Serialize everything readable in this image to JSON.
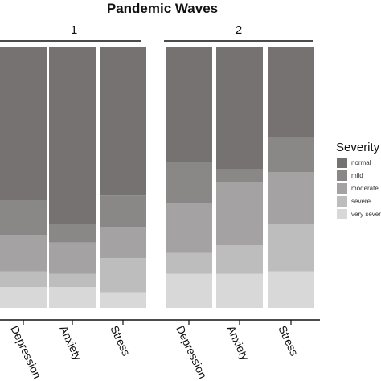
{
  "chart_data": {
    "type": "bar",
    "stacked": true,
    "normalized": true,
    "title": "Pandemic Waves",
    "groups": [
      {
        "label": "1",
        "categories": [
          "Depression",
          "Anxiety",
          "Stress"
        ]
      },
      {
        "label": "2",
        "categories": [
          "Depression",
          "Anxiety",
          "Stress"
        ]
      }
    ],
    "series": [
      {
        "name": "normal",
        "color": "#767272",
        "values": [
          0.59,
          0.68,
          0.57,
          0.44,
          0.47,
          0.35
        ]
      },
      {
        "name": "mild",
        "color": "#8a8787",
        "values": [
          0.13,
          0.07,
          0.12,
          0.16,
          0.05,
          0.13
        ]
      },
      {
        "name": "moderate",
        "color": "#a4a2a2",
        "values": [
          0.14,
          0.12,
          0.12,
          0.19,
          0.24,
          0.2
        ]
      },
      {
        "name": "severe",
        "color": "#bebdbd",
        "values": [
          0.06,
          0.05,
          0.13,
          0.08,
          0.11,
          0.18
        ]
      },
      {
        "name": "very severe",
        "color": "#d9d8d8",
        "values": [
          0.08,
          0.08,
          0.06,
          0.13,
          0.13,
          0.14
        ]
      }
    ],
    "ylim": [
      0,
      1
    ],
    "legend": {
      "title": "Severity",
      "position": "right",
      "labels": [
        "normal",
        "mild",
        "moderate",
        "severe",
        "very severe"
      ]
    },
    "grid": false
  }
}
